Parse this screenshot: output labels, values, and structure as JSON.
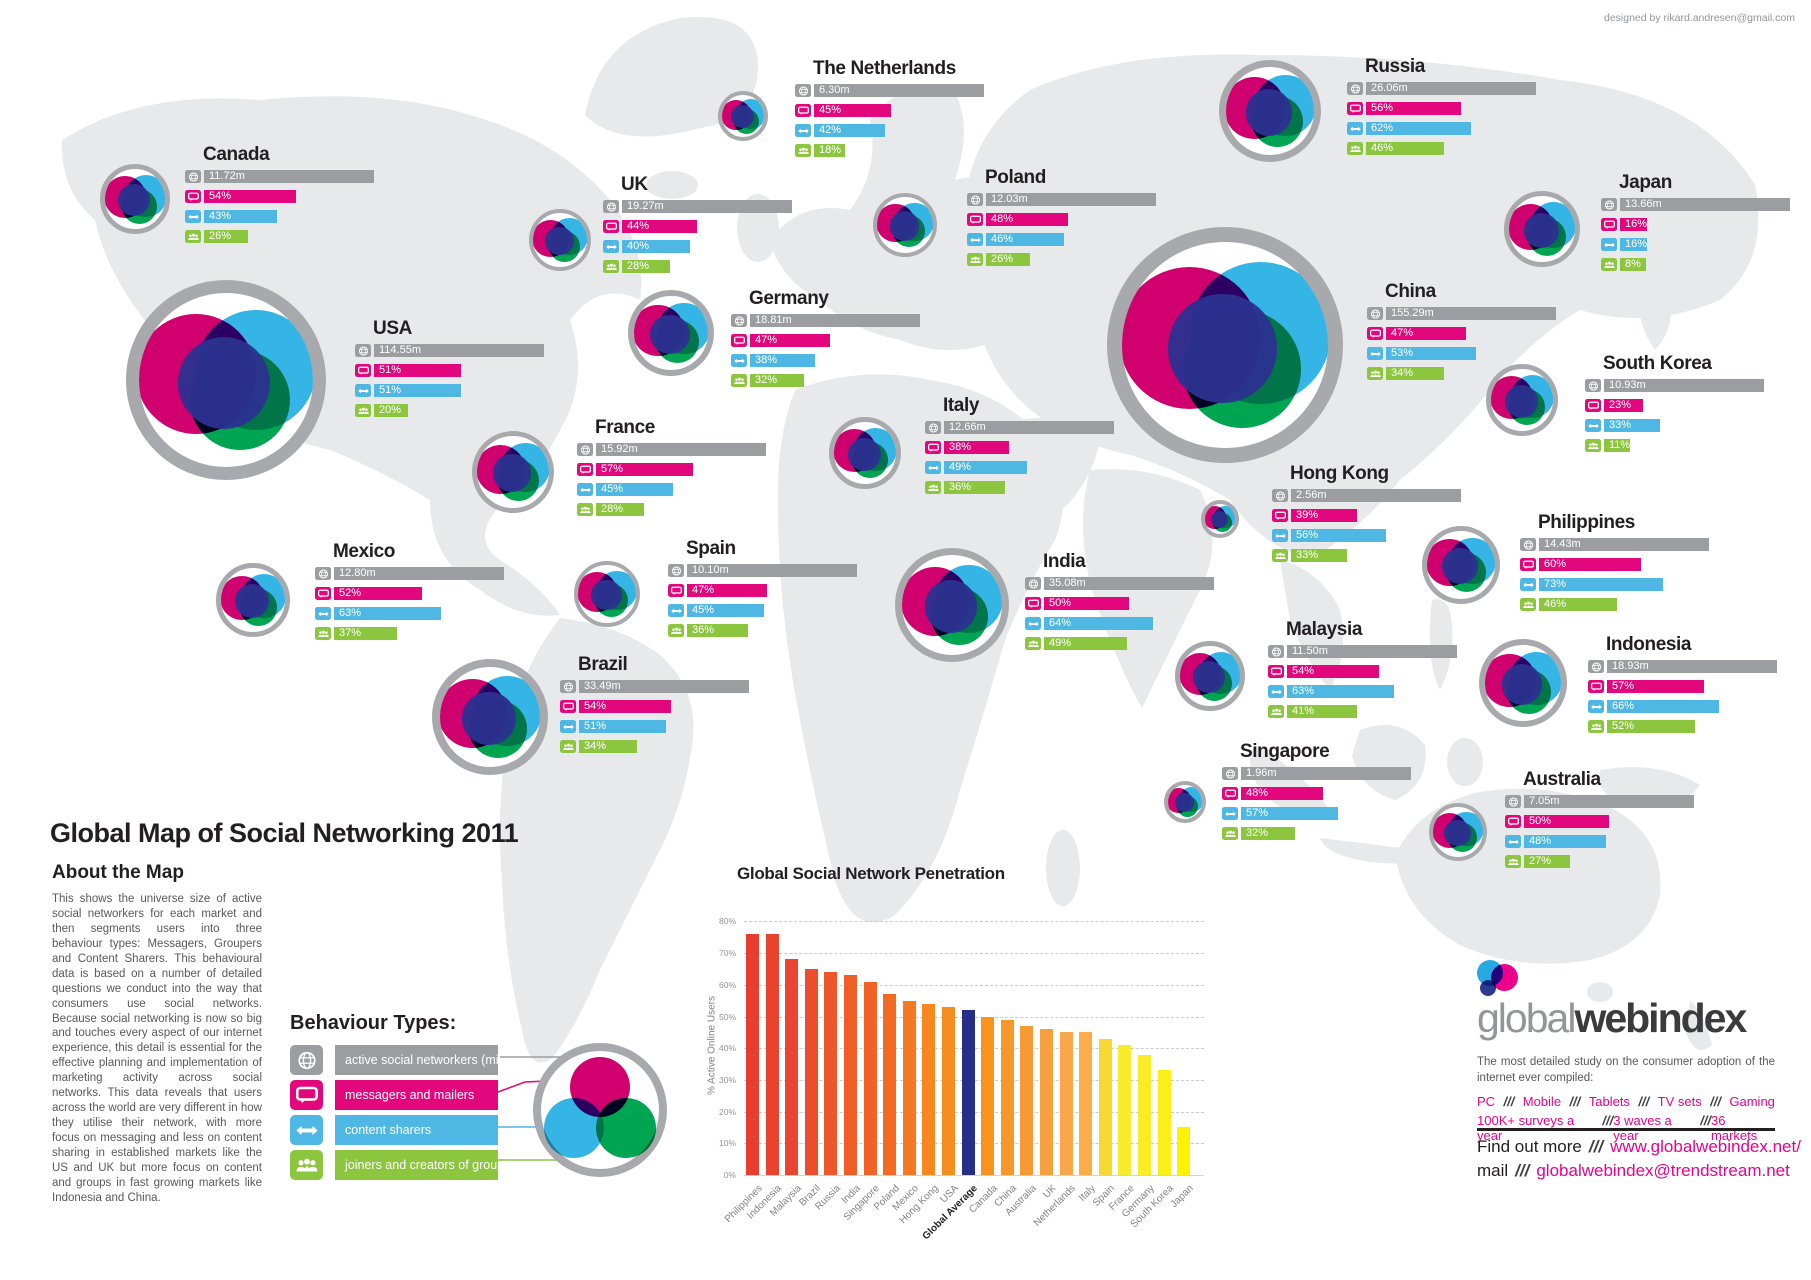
{
  "credit": "designed by rikard.andresen@gmail.com",
  "title": "Global Map of Social Networking 2011",
  "about": {
    "heading": "About the Map",
    "body": "This shows the universe size of active social networkers for each market and then segments users into three behaviour types: Messagers, Groupers and Content Sharers. This behavioural data is based on a number of detailed questions we conduct into the way that consumers use social networks. Because social networking is now so big and touches every aspect of our internet experience, this detail is essential for the effective planning and implementation of marketing activity across social networks. This data reveals that users across the world are very different in how they utilise their network, with more focus on messaging and less on content sharing in established markets like the US and UK but more focus on content and groups in fast growing markets like Indonesia and China."
  },
  "legend": {
    "heading": "Behaviour Types:",
    "items": [
      {
        "icon": "globe-icon",
        "label": "active social networkers (millions)",
        "color": "#9b9da0"
      },
      {
        "icon": "speech-icon",
        "label": "messagers and mailers",
        "color": "#e2077c"
      },
      {
        "icon": "arrows-icon",
        "label": "content sharers",
        "color": "#4fb7e3"
      },
      {
        "icon": "people-icon",
        "label": "joiners and creators of groups",
        "color": "#8cc63f"
      }
    ]
  },
  "colors": {
    "universe_bar": "#9b9da0",
    "messagers_bar": "#e2077c",
    "sharers_bar": "#4fb7e3",
    "groupers_bar": "#8cc63f",
    "venn_magenta": "#d0006e",
    "venn_blue": "#35b5e5",
    "venn_green": "#00a551",
    "venn_navy": "#2b3190"
  },
  "countries": [
    {
      "name": "Canada",
      "universe": "11.72m",
      "messagers": "54%",
      "sharers": "43%",
      "groupers": "26%"
    },
    {
      "name": "USA",
      "universe": "114.55m",
      "messagers": "51%",
      "sharers": "51%",
      "groupers": "20%"
    },
    {
      "name": "Mexico",
      "universe": "12.80m",
      "messagers": "52%",
      "sharers": "63%",
      "groupers": "37%"
    },
    {
      "name": "Brazil",
      "universe": "33.49m",
      "messagers": "54%",
      "sharers": "51%",
      "groupers": "34%"
    },
    {
      "name": "The Netherlands",
      "universe": "6.30m",
      "messagers": "45%",
      "sharers": "42%",
      "groupers": "18%"
    },
    {
      "name": "UK",
      "universe": "19.27m",
      "messagers": "44%",
      "sharers": "40%",
      "groupers": "28%"
    },
    {
      "name": "France",
      "universe": "15.92m",
      "messagers": "57%",
      "sharers": "45%",
      "groupers": "28%"
    },
    {
      "name": "Spain",
      "universe": "10.10m",
      "messagers": "47%",
      "sharers": "45%",
      "groupers": "36%"
    },
    {
      "name": "Germany",
      "universe": "18.81m",
      "messagers": "47%",
      "sharers": "38%",
      "groupers": "32%"
    },
    {
      "name": "Poland",
      "universe": "12.03m",
      "messagers": "48%",
      "sharers": "46%",
      "groupers": "26%"
    },
    {
      "name": "Italy",
      "universe": "12.66m",
      "messagers": "38%",
      "sharers": "49%",
      "groupers": "36%"
    },
    {
      "name": "Russia",
      "universe": "26.06m",
      "messagers": "56%",
      "sharers": "62%",
      "groupers": "46%"
    },
    {
      "name": "Japan",
      "universe": "13.66m",
      "messagers": "16%",
      "sharers": "16%",
      "groupers": "8%"
    },
    {
      "name": "China",
      "universe": "155.29m",
      "messagers": "47%",
      "sharers": "53%",
      "groupers": "34%"
    },
    {
      "name": "South Korea",
      "universe": "10.93m",
      "messagers": "23%",
      "sharers": "33%",
      "groupers": "11%"
    },
    {
      "name": "Hong Kong",
      "universe": "2.56m",
      "messagers": "39%",
      "sharers": "56%",
      "groupers": "33%"
    },
    {
      "name": "India",
      "universe": "35.08m",
      "messagers": "50%",
      "sharers": "64%",
      "groupers": "49%"
    },
    {
      "name": "Malaysia",
      "universe": "11.50m",
      "messagers": "54%",
      "sharers": "63%",
      "groupers": "41%"
    },
    {
      "name": "Philippines",
      "universe": "14.43m",
      "messagers": "60%",
      "sharers": "73%",
      "groupers": "46%"
    },
    {
      "name": "Indonesia",
      "universe": "18.93m",
      "messagers": "57%",
      "sharers": "66%",
      "groupers": "52%"
    },
    {
      "name": "Singapore",
      "universe": "1.96m",
      "messagers": "48%",
      "sharers": "57%",
      "groupers": "32%"
    },
    {
      "name": "Australia",
      "universe": "7.05m",
      "messagers": "50%",
      "sharers": "48%",
      "groupers": "27%"
    }
  ],
  "chart_data": {
    "type": "bar",
    "title": "Global Social Network Penetration",
    "ylabel": "% Active Online Users",
    "ylim": [
      0,
      80
    ],
    "yticks": [
      80,
      70,
      60,
      50,
      40,
      30,
      20,
      10,
      0
    ],
    "ytick_labels": [
      "80%",
      "70%",
      "60%",
      "50%",
      "40%",
      "30%",
      "20%",
      "10%",
      "0%"
    ],
    "grid": "dashed-horizontal",
    "categories": [
      "Philippines",
      "Indonesia",
      "Malaysia",
      "Brazil",
      "Russia",
      "India",
      "Singapore",
      "Poland",
      "Mexico",
      "Hong Kong",
      "USA",
      "Global Average",
      "Canada",
      "China",
      "Australia",
      "UK",
      "Netherlands",
      "Italy",
      "Spain",
      "France",
      "Germany",
      "South Korea",
      "Japan"
    ],
    "values": [
      76,
      76,
      68,
      65,
      64,
      63,
      61,
      57,
      55,
      54,
      53,
      52,
      50,
      49,
      47,
      46,
      45,
      45,
      43,
      41,
      38,
      33,
      15
    ],
    "highlight_category": "Global Average",
    "highlight_color": "#262f87"
  },
  "branding": {
    "logo_light": "global",
    "logo_bold": "webindex",
    "tagline": "The most detailed study on the consumer adoption of the internet ever compiled:",
    "slash": "///",
    "features_line1": [
      "PC",
      "Mobile",
      "Tablets",
      "TV sets",
      "Gaming"
    ],
    "features_line2": [
      "100K+ surveys a year",
      "3 waves a year",
      "36 markets"
    ],
    "find_out_more_label": "Find out more",
    "website": "www.globalwebindex.net/",
    "mail_label": "mail",
    "email": "globalwebindex@trendstream.net"
  }
}
